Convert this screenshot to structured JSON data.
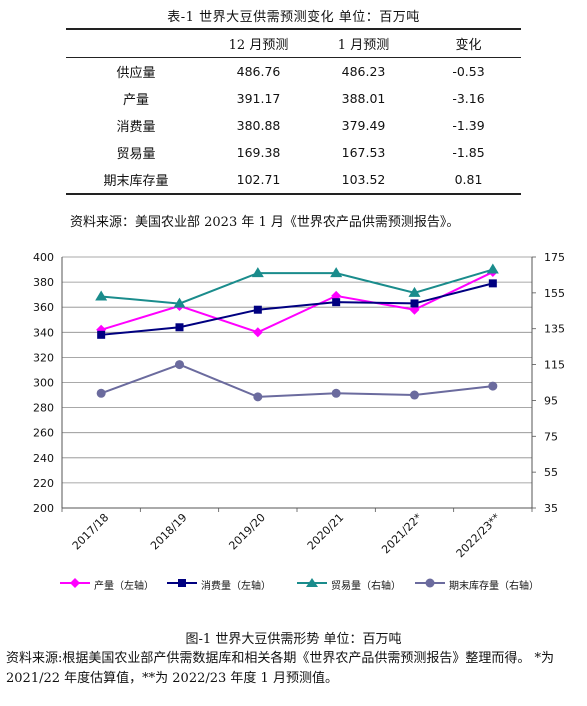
{
  "table": {
    "title": "表-1 世界大豆供需预测变化     单位：百万吨",
    "headers": [
      "",
      "12 月预测",
      "1 月预测",
      "变化"
    ],
    "rows": [
      [
        "供应量",
        "486.76",
        "486.23",
        "-0.53"
      ],
      [
        "产量",
        "391.17",
        "388.01",
        "-3.16"
      ],
      [
        "消费量",
        "380.88",
        "379.49",
        "-1.39"
      ],
      [
        "贸易量",
        "169.38",
        "167.53",
        "-1.85"
      ],
      [
        "期末库存量",
        "102.71",
        "103.52",
        "0.81"
      ]
    ],
    "source": "资料来源：美国农业部 2023 年 1 月《世界农产品供需预测报告》。"
  },
  "chart_data": {
    "type": "line",
    "categories": [
      "2017/18",
      "2018/19",
      "2019/20",
      "2020/21",
      "2021/22*",
      "2022/23**"
    ],
    "y_left": {
      "range": [
        200,
        400
      ],
      "ticks": [
        "200",
        "220",
        "240",
        "260",
        "280",
        "300",
        "320",
        "340",
        "360",
        "380",
        "400"
      ]
    },
    "y_right": {
      "range": [
        35,
        175
      ],
      "ticks": [
        "35",
        "55",
        "75",
        "95",
        "115",
        "135",
        "155",
        "175"
      ]
    },
    "grid": true,
    "legend_position": "bottom",
    "series": [
      {
        "name": "产量（左轴）",
        "axis": "left",
        "color": "#ff00ff",
        "marker": "diamond",
        "values": [
          342,
          361,
          340,
          369,
          358,
          388
        ]
      },
      {
        "name": "消费量（左轴）",
        "axis": "left",
        "color": "#000080",
        "marker": "square",
        "values": [
          338,
          344,
          358,
          364,
          363,
          379
        ]
      },
      {
        "name": "贸易量（右轴）",
        "axis": "right",
        "color": "#1a8c8c",
        "marker": "triangle",
        "values": [
          153,
          149,
          166,
          166,
          155,
          168
        ]
      },
      {
        "name": "期末库存量（右轴）",
        "axis": "right",
        "color": "#6b6b9e",
        "marker": "circle",
        "values": [
          99,
          115,
          97,
          99,
          98,
          103
        ]
      }
    ]
  },
  "figure": {
    "caption": "图-1  世界大豆供需形势     单位：百万吨",
    "source": "资料来源:根据美国农业部产供需数据库和相关各期《世界农产品供需预测报告》整理而得。 *为 2021/22 年度估算值，**为 2022/23 年度 1 月预测值。"
  }
}
